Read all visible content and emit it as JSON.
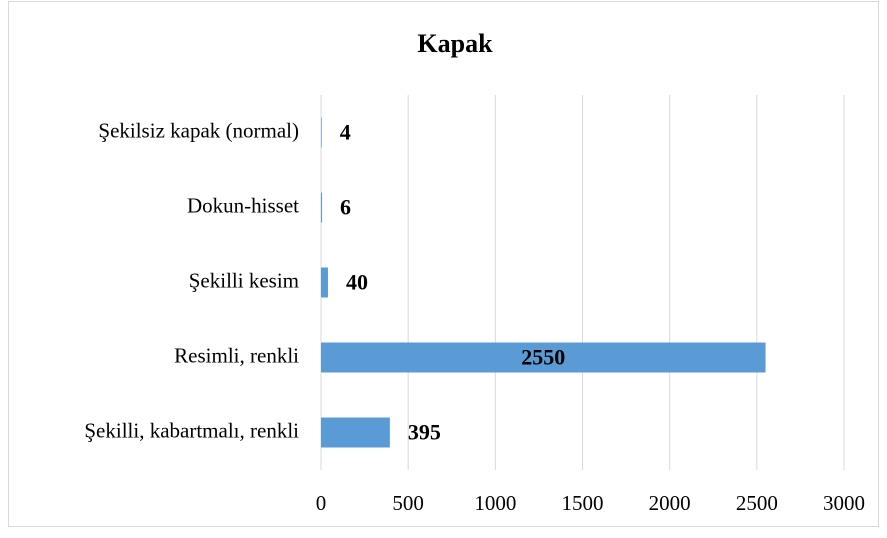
{
  "chart_data": {
    "type": "bar",
    "orientation": "horizontal",
    "title": "Kapak",
    "categories": [
      "Şekilsiz kapak (normal)",
      "Dokun-hisset",
      "Şekilli kesim",
      "Resimli, renkli",
      "Şekilli, kabartmalı, renkli"
    ],
    "values": [
      4,
      6,
      40,
      2550,
      395
    ],
    "color": "#5b9bd5",
    "xlim": [
      0,
      3000
    ],
    "xticks": [
      0,
      500,
      1000,
      1500,
      2000,
      2500,
      3000
    ],
    "grid": true
  }
}
